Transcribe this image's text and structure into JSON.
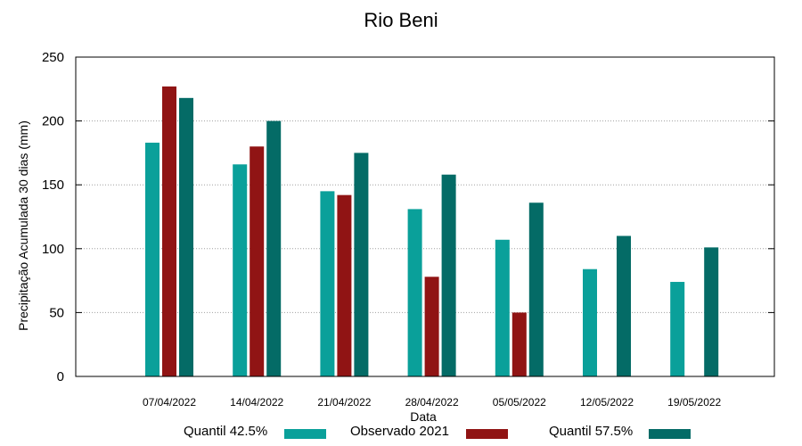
{
  "chart_data": {
    "type": "bar",
    "title": "Rio Beni",
    "xlabel": "Data",
    "ylabel": "Precipitação Acumulada 30 dias (mm)",
    "ylim": [
      0,
      250
    ],
    "yticks": [
      0,
      50,
      100,
      150,
      200,
      250
    ],
    "grid": true,
    "legend_position": "bottom",
    "categories": [
      "07/04/2022",
      "14/04/2022",
      "21/04/2022",
      "28/04/2022",
      "05/05/2022",
      "12/05/2022",
      "19/05/2022"
    ],
    "series": [
      {
        "name": "Quantil 42.5%",
        "color": "#0aa09a",
        "values": [
          183,
          166,
          145,
          131,
          107,
          84,
          74
        ]
      },
      {
        "name": "Observado 2021",
        "color": "#901414",
        "values": [
          227,
          180,
          142,
          78,
          50,
          null,
          null
        ]
      },
      {
        "name": "Quantil 57.5%",
        "color": "#046b66",
        "values": [
          218,
          200,
          175,
          158,
          136,
          110,
          101
        ]
      }
    ]
  }
}
